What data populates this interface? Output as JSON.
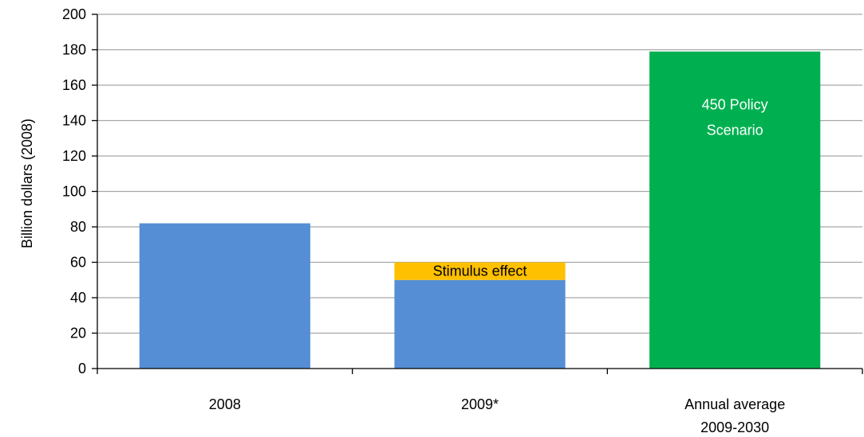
{
  "chart_data": {
    "type": "bar",
    "stacked": true,
    "title": "",
    "xlabel": "",
    "ylabel": "Billion dollars (2008)",
    "ylim": [
      0,
      200
    ],
    "yticks": [
      0,
      20,
      40,
      60,
      80,
      100,
      120,
      140,
      160,
      180,
      200
    ],
    "grid": true,
    "legend": "none",
    "categories": [
      {
        "label_lines": [
          "2008"
        ]
      },
      {
        "label_lines": [
          "2009*"
        ]
      },
      {
        "label_lines": [
          "Annual average",
          "2009-2030"
        ]
      }
    ],
    "series": [
      {
        "values": [
          82,
          50,
          0
        ],
        "color": "#558ED5",
        "labels": [
          [],
          [],
          []
        ]
      },
      {
        "values": [
          0,
          10,
          0
        ],
        "color": "#FFC000",
        "labels": [
          [],
          [
            "Stimulus effect"
          ],
          []
        ],
        "label_color": "#000000"
      },
      {
        "values": [
          0,
          0,
          179
        ],
        "color": "#00B050",
        "labels": [
          [],
          [],
          [
            "450 Policy",
            "Scenario"
          ]
        ],
        "label_color": "#ffffff"
      }
    ]
  }
}
